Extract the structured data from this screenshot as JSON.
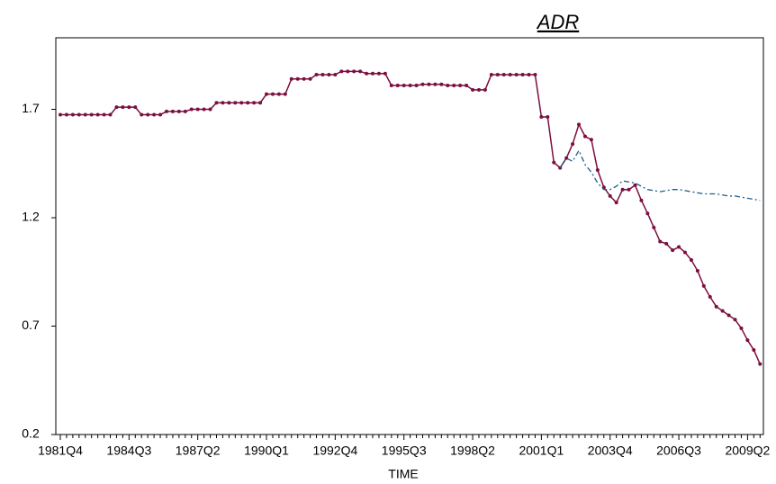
{
  "chart_data": {
    "type": "line",
    "title": "ADR",
    "x_label": "TIME",
    "categories": [
      "1981Q4",
      null,
      null,
      null,
      null,
      null,
      null,
      null,
      null,
      null,
      null,
      "1984Q3",
      null,
      null,
      null,
      null,
      null,
      null,
      null,
      null,
      null,
      null,
      "1987Q2",
      null,
      null,
      null,
      null,
      null,
      null,
      null,
      null,
      null,
      null,
      "1990Q1",
      null,
      null,
      null,
      null,
      null,
      null,
      null,
      null,
      null,
      null,
      "1992Q4",
      null,
      null,
      null,
      null,
      null,
      null,
      null,
      null,
      null,
      null,
      "1995Q3",
      null,
      null,
      null,
      null,
      null,
      null,
      null,
      null,
      null,
      null,
      "1998Q2",
      null,
      null,
      null,
      null,
      null,
      null,
      null,
      null,
      null,
      null,
      "2001Q1",
      null,
      null,
      null,
      null,
      null,
      null,
      null,
      null,
      null,
      null,
      "2003Q4",
      null,
      null,
      null,
      null,
      null,
      null,
      null,
      null,
      null,
      null,
      "2006Q3",
      null,
      null,
      null,
      null,
      null,
      null,
      null,
      null,
      null,
      null,
      "2009Q2",
      null,
      null
    ],
    "series": [
      {
        "color": "#7b0f3f",
        "dashed": false,
        "markers": true,
        "values": [
          1.675,
          1.675,
          1.675,
          1.675,
          1.675,
          1.675,
          1.675,
          1.675,
          1.675,
          1.71,
          1.71,
          1.71,
          1.71,
          1.675,
          1.675,
          1.675,
          1.675,
          1.69,
          1.69,
          1.69,
          1.69,
          1.7,
          1.7,
          1.7,
          1.7,
          1.73,
          1.73,
          1.73,
          1.73,
          1.73,
          1.73,
          1.73,
          1.73,
          1.77,
          1.77,
          1.77,
          1.77,
          1.84,
          1.84,
          1.84,
          1.84,
          1.86,
          1.86,
          1.86,
          1.86,
          1.875,
          1.875,
          1.875,
          1.875,
          1.865,
          1.865,
          1.865,
          1.865,
          1.81,
          1.81,
          1.81,
          1.81,
          1.81,
          1.815,
          1.815,
          1.815,
          1.815,
          1.81,
          1.81,
          1.81,
          1.81,
          1.79,
          1.79,
          1.79,
          1.86,
          1.86,
          1.86,
          1.86,
          1.86,
          1.86,
          1.86,
          1.86,
          1.665,
          1.665,
          1.455,
          1.43,
          1.475,
          1.54,
          1.63,
          1.575,
          1.56,
          1.42,
          1.34,
          1.3,
          1.27,
          1.33,
          1.33,
          1.35,
          1.28,
          1.22,
          1.155,
          1.09,
          1.08,
          1.05,
          1.065,
          1.04,
          1.005,
          0.955,
          0.885,
          0.835,
          0.79,
          0.77,
          0.75,
          0.73,
          0.69,
          0.635,
          0.59,
          0.525
        ]
      },
      {
        "color": "#1f5f8b",
        "dashed": true,
        "markers": false,
        "values": [
          null,
          null,
          null,
          null,
          null,
          null,
          null,
          null,
          null,
          null,
          null,
          null,
          null,
          null,
          null,
          null,
          null,
          null,
          null,
          null,
          null,
          null,
          null,
          null,
          null,
          null,
          null,
          null,
          null,
          null,
          null,
          null,
          null,
          null,
          null,
          null,
          null,
          null,
          null,
          null,
          null,
          null,
          null,
          null,
          null,
          null,
          null,
          null,
          null,
          null,
          null,
          null,
          null,
          null,
          null,
          null,
          null,
          null,
          null,
          null,
          null,
          null,
          null,
          null,
          null,
          null,
          null,
          null,
          null,
          null,
          null,
          null,
          null,
          null,
          null,
          null,
          null,
          null,
          null,
          null,
          1.43,
          1.475,
          1.46,
          1.51,
          1.445,
          1.41,
          1.36,
          1.33,
          1.33,
          1.345,
          1.37,
          1.365,
          1.36,
          1.345,
          1.33,
          1.325,
          1.32,
          1.325,
          1.33,
          1.33,
          1.325,
          1.32,
          1.315,
          1.31,
          1.31,
          1.31,
          1.305,
          1.3,
          1.3,
          1.295,
          1.29,
          1.285,
          1.28
        ]
      }
    ],
    "ylim": [
      0.2,
      2.03
    ],
    "yticks": [
      0.2,
      0.7,
      1.2,
      1.7
    ]
  }
}
